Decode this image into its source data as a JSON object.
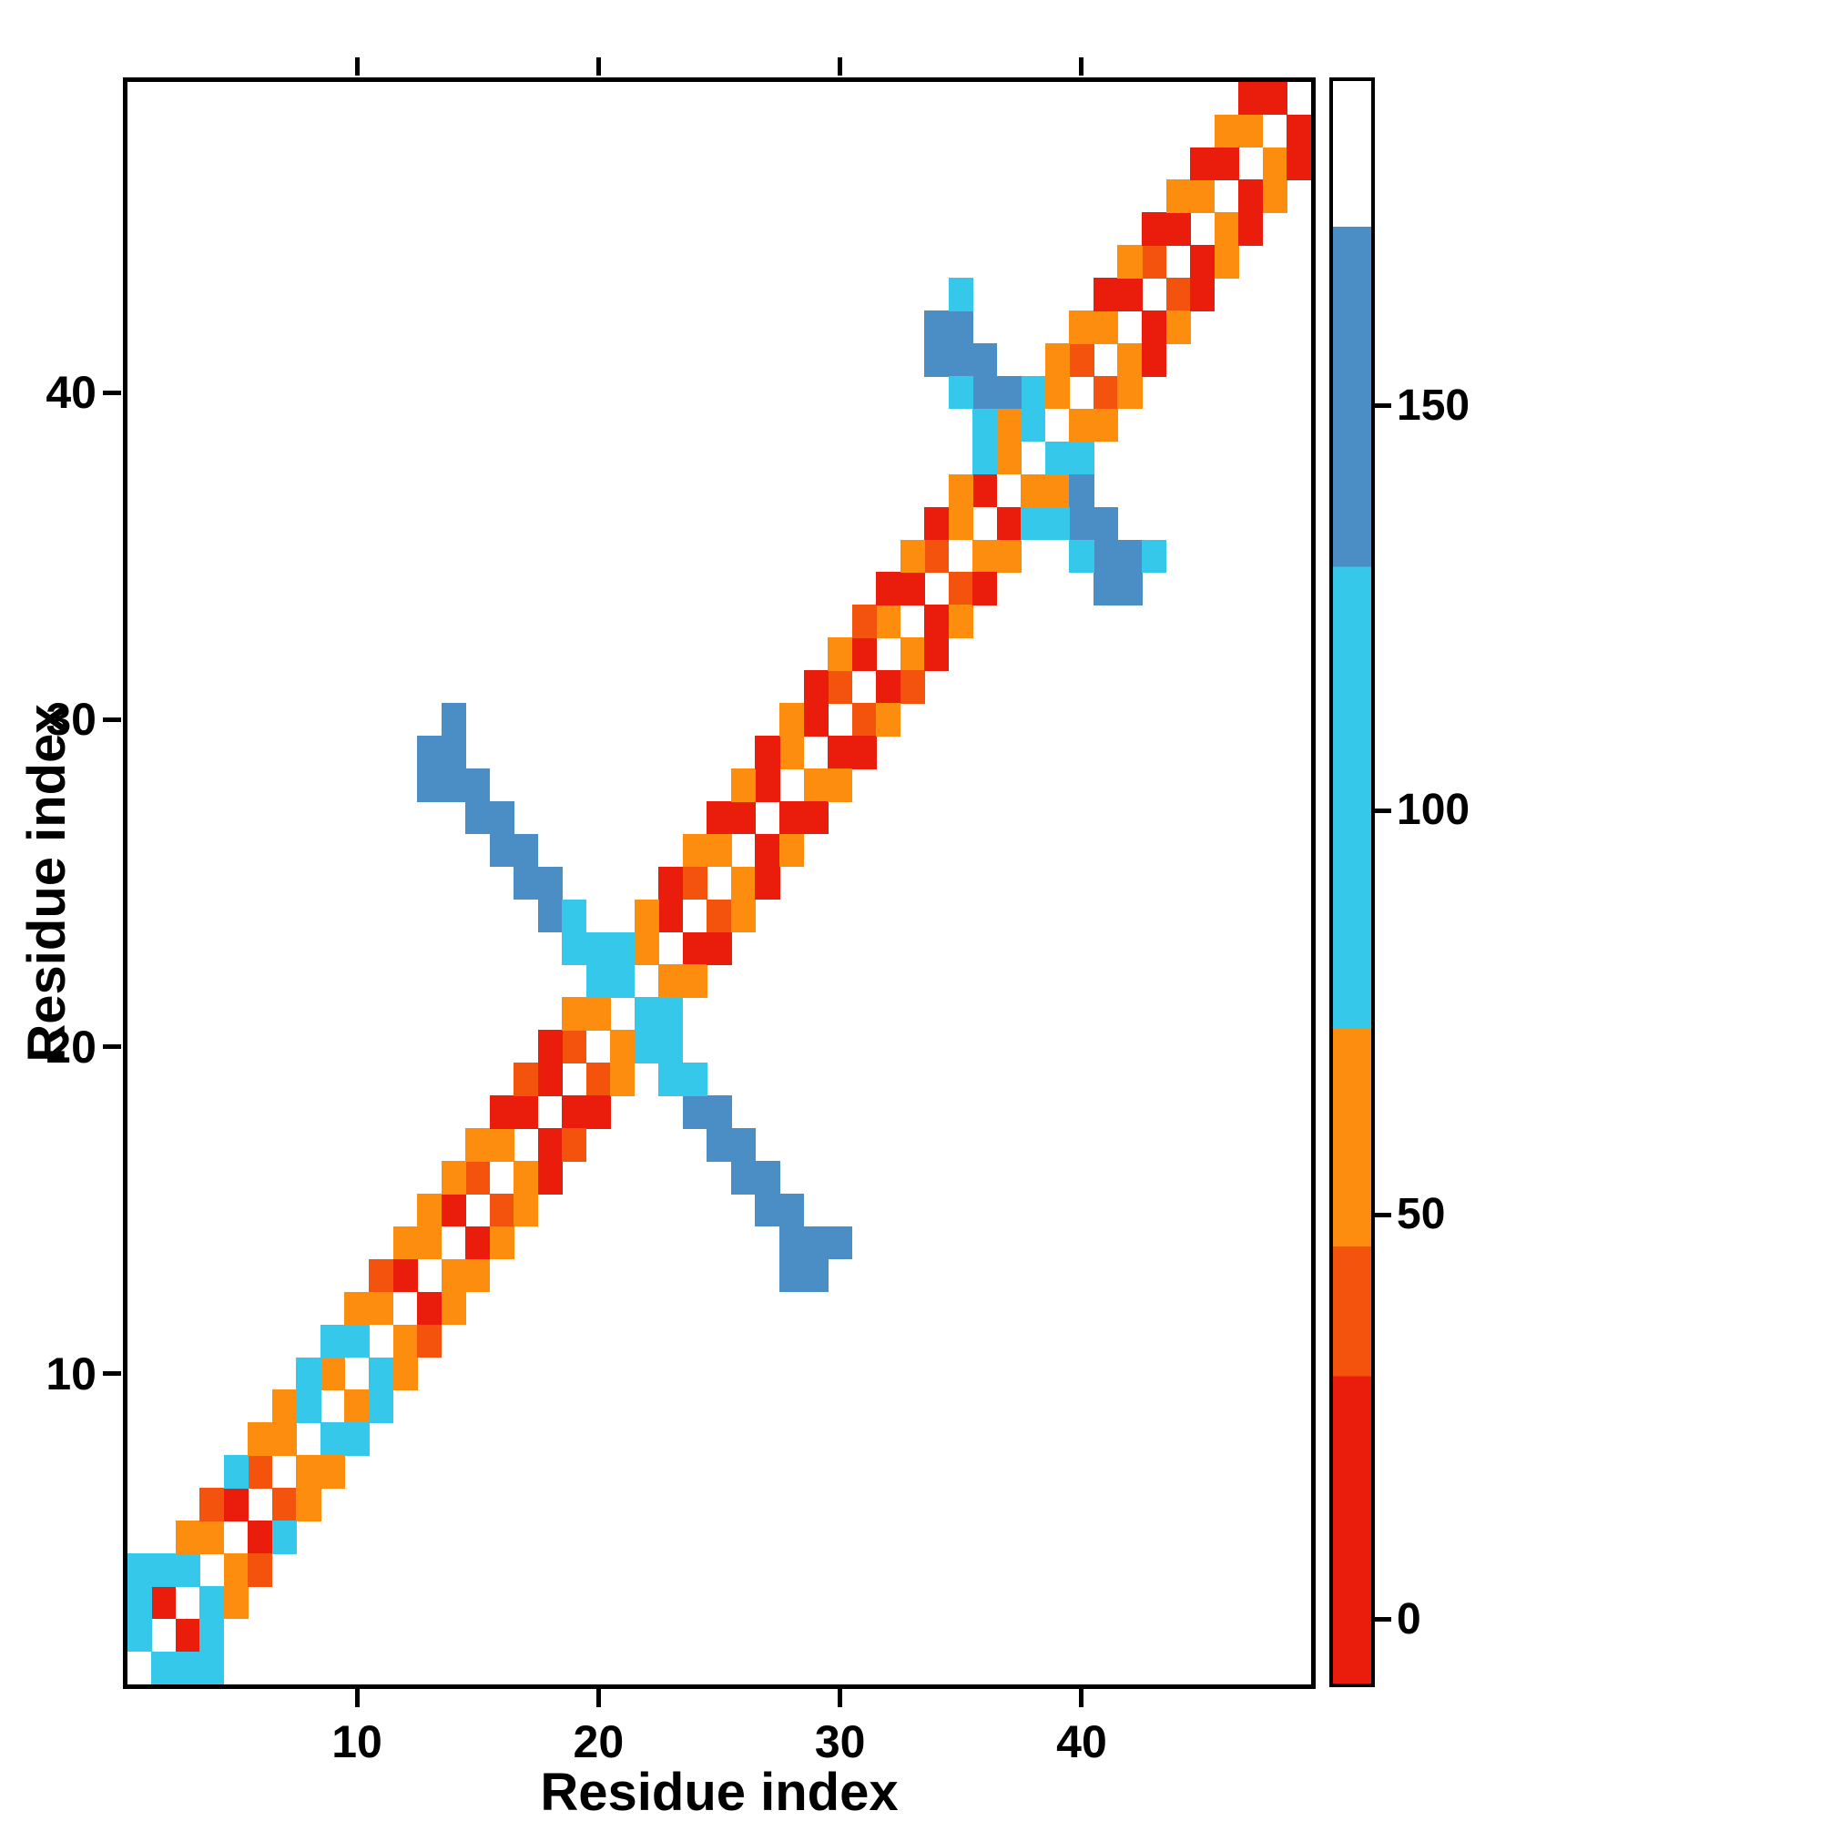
{
  "chart_data": {
    "type": "heatmap",
    "title": "",
    "xlabel": "Residue index",
    "ylabel": "Residue index",
    "x_range": [
      0.5,
      49.5
    ],
    "y_range": [
      0.5,
      49.5
    ],
    "x_ticks": [
      10,
      20,
      30,
      40
    ],
    "y_ticks": [
      10,
      20,
      30,
      40
    ],
    "grid": false,
    "background_value_color": "#ffffff",
    "colormap_segments": [
      {
        "upto": 30,
        "color": "#ea1c0c"
      },
      {
        "upto": 46,
        "color": "#f4530d"
      },
      {
        "upto": 73,
        "color": "#fc8d0f"
      },
      {
        "upto": 130,
        "color": "#35c8ea"
      },
      {
        "upto": 172,
        "color": "#4a8ec5"
      },
      {
        "upto": 190,
        "color": "#ffffff"
      }
    ],
    "colorbar": {
      "range": [
        -8,
        190
      ],
      "ticks": [
        0,
        50,
        100,
        150
      ],
      "position": "right"
    },
    "symmetric": true,
    "cells": [
      [
        1,
        2,
        100
      ],
      [
        2,
        3,
        10
      ],
      [
        3,
        4,
        100
      ],
      [
        4,
        5,
        55
      ],
      [
        5,
        6,
        10
      ],
      [
        6,
        7,
        35
      ],
      [
        7,
        8,
        55
      ],
      [
        8,
        9,
        100
      ],
      [
        9,
        10,
        55
      ],
      [
        10,
        11,
        100
      ],
      [
        11,
        12,
        55
      ],
      [
        12,
        13,
        10
      ],
      [
        13,
        14,
        55
      ],
      [
        14,
        15,
        10
      ],
      [
        15,
        16,
        35
      ],
      [
        16,
        17,
        55
      ],
      [
        17,
        18,
        10
      ],
      [
        18,
        19,
        10
      ],
      [
        19,
        20,
        35
      ],
      [
        20,
        21,
        55
      ],
      [
        21,
        22,
        100
      ],
      [
        22,
        23,
        55
      ],
      [
        23,
        24,
        10
      ],
      [
        24,
        25,
        35
      ],
      [
        25,
        26,
        55
      ],
      [
        26,
        27,
        10
      ],
      [
        27,
        28,
        10
      ],
      [
        28,
        29,
        55
      ],
      [
        29,
        30,
        10
      ],
      [
        30,
        31,
        35
      ],
      [
        31,
        32,
        10
      ],
      [
        32,
        33,
        55
      ],
      [
        33,
        34,
        10
      ],
      [
        34,
        35,
        35
      ],
      [
        35,
        36,
        55
      ],
      [
        36,
        37,
        10
      ],
      [
        37,
        38,
        55
      ],
      [
        38,
        39,
        100
      ],
      [
        39,
        40,
        55
      ],
      [
        40,
        41,
        35
      ],
      [
        41,
        42,
        55
      ],
      [
        42,
        43,
        10
      ],
      [
        43,
        44,
        35
      ],
      [
        44,
        45,
        10
      ],
      [
        45,
        46,
        55
      ],
      [
        46,
        47,
        10
      ],
      [
        47,
        48,
        55
      ],
      [
        48,
        49,
        10
      ],
      [
        1,
        3,
        100
      ],
      [
        2,
        4,
        100
      ],
      [
        3,
        5,
        55
      ],
      [
        4,
        6,
        35
      ],
      [
        5,
        7,
        100
      ],
      [
        6,
        8,
        55
      ],
      [
        7,
        9,
        55
      ],
      [
        8,
        10,
        100
      ],
      [
        9,
        11,
        100
      ],
      [
        10,
        12,
        55
      ],
      [
        11,
        13,
        35
      ],
      [
        12,
        14,
        55
      ],
      [
        13,
        15,
        55
      ],
      [
        14,
        16,
        55
      ],
      [
        15,
        17,
        55
      ],
      [
        16,
        18,
        10
      ],
      [
        17,
        19,
        35
      ],
      [
        18,
        20,
        10
      ],
      [
        19,
        21,
        55
      ],
      [
        20,
        22,
        100
      ],
      [
        21,
        23,
        100
      ],
      [
        22,
        24,
        55
      ],
      [
        23,
        25,
        10
      ],
      [
        24,
        26,
        55
      ],
      [
        25,
        27,
        10
      ],
      [
        26,
        28,
        55
      ],
      [
        27,
        29,
        10
      ],
      [
        28,
        30,
        55
      ],
      [
        29,
        31,
        10
      ],
      [
        30,
        32,
        55
      ],
      [
        31,
        33,
        35
      ],
      [
        32,
        34,
        10
      ],
      [
        33,
        35,
        55
      ],
      [
        34,
        36,
        10
      ],
      [
        35,
        37,
        55
      ],
      [
        36,
        38,
        100
      ],
      [
        37,
        39,
        55
      ],
      [
        38,
        40,
        100
      ],
      [
        39,
        41,
        55
      ],
      [
        40,
        42,
        55
      ],
      [
        41,
        43,
        10
      ],
      [
        42,
        44,
        55
      ],
      [
        43,
        45,
        10
      ],
      [
        44,
        46,
        55
      ],
      [
        45,
        47,
        10
      ],
      [
        46,
        48,
        55
      ],
      [
        47,
        49,
        10
      ],
      [
        13,
        28,
        150
      ],
      [
        13,
        29,
        150
      ],
      [
        14,
        28,
        150
      ],
      [
        14,
        29,
        150
      ],
      [
        14,
        30,
        150
      ],
      [
        15,
        27,
        150
      ],
      [
        15,
        28,
        150
      ],
      [
        16,
        26,
        150
      ],
      [
        16,
        27,
        150
      ],
      [
        17,
        25,
        150
      ],
      [
        17,
        26,
        150
      ],
      [
        18,
        24,
        150
      ],
      [
        18,
        25,
        150
      ],
      [
        19,
        23,
        100
      ],
      [
        19,
        24,
        100
      ],
      [
        20,
        23,
        100
      ],
      [
        34,
        41,
        150
      ],
      [
        34,
        42,
        150
      ],
      [
        35,
        41,
        150
      ],
      [
        35,
        42,
        150
      ],
      [
        36,
        40,
        150
      ],
      [
        36,
        41,
        150
      ],
      [
        37,
        40,
        150
      ],
      [
        35,
        43,
        100
      ],
      [
        35,
        40,
        100
      ],
      [
        36,
        39,
        100
      ],
      [
        1,
        4,
        100
      ]
    ]
  }
}
